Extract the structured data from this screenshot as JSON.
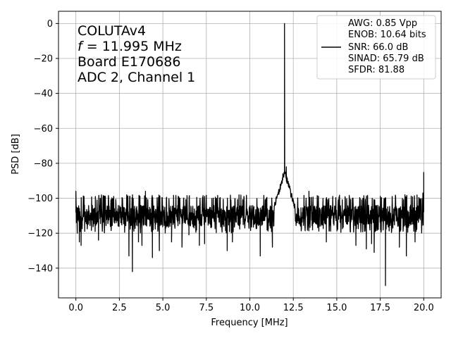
{
  "chart_data": {
    "type": "line",
    "xlabel": "Frequency [MHz]",
    "ylabel": "PSD [dB]",
    "xlim": [
      -1,
      21
    ],
    "ylim": [
      -157,
      7
    ],
    "xticks": [
      0.0,
      2.5,
      5.0,
      7.5,
      10.0,
      12.5,
      15.0,
      17.5,
      20.0
    ],
    "xtick_labels": [
      "0.0",
      "2.5",
      "5.0",
      "7.5",
      "10.0",
      "12.5",
      "15.0",
      "17.5",
      "20.0"
    ],
    "yticks": [
      0,
      -20,
      -40,
      -60,
      -80,
      -100,
      -120,
      -140
    ],
    "ytick_labels": [
      "0",
      "−20",
      "−40",
      "−60",
      "−80",
      "−100",
      "−120",
      "−140"
    ],
    "grid": true,
    "annotation": {
      "line1": "COLUTAv4",
      "line2_italic": "f",
      "line2_rest": " = 11.995 MHz",
      "line3": "Board E170686",
      "line4": "ADC 2, Channel 1"
    },
    "legend": {
      "placement": "top-right",
      "lines": [
        "AWG: 0.85 Vpp",
        "ENOB: 10.64 bits",
        "SNR: 66.0 dB",
        "SINAD: 65.79 dB",
        "SFDR: 81.88"
      ]
    },
    "series": [
      {
        "color": "#000000",
        "noise_floor_db": -110,
        "noise_band_db": [
          -120,
          -98
        ],
        "points": [
          {
            "x": 0.0,
            "y": -96
          },
          {
            "x": 0.03,
            "y": -105
          },
          {
            "x": 0.08,
            "y": -120
          },
          {
            "x": 0.2,
            "y": -125
          },
          {
            "x": 0.3,
            "y": -127
          },
          {
            "x": 1.3,
            "y": -124
          },
          {
            "x": 3.05,
            "y": -133
          },
          {
            "x": 3.25,
            "y": -142
          },
          {
            "x": 3.6,
            "y": -125
          },
          {
            "x": 3.8,
            "y": -127
          },
          {
            "x": 4.0,
            "y": -96
          },
          {
            "x": 4.4,
            "y": -134
          },
          {
            "x": 4.8,
            "y": -130
          },
          {
            "x": 5.5,
            "y": -125
          },
          {
            "x": 6.1,
            "y": -128
          },
          {
            "x": 6.5,
            "y": -121
          },
          {
            "x": 7.1,
            "y": -127
          },
          {
            "x": 7.4,
            "y": -126
          },
          {
            "x": 8.7,
            "y": -130
          },
          {
            "x": 9.0,
            "y": -125
          },
          {
            "x": 10.6,
            "y": -133
          },
          {
            "x": 11.3,
            "y": -128
          },
          {
            "x": 11.5,
            "y": -100
          },
          {
            "x": 11.75,
            "y": -92
          },
          {
            "x": 11.9,
            "y": -86
          },
          {
            "x": 11.995,
            "y": 0
          },
          {
            "x": 12.1,
            "y": -82
          },
          {
            "x": 12.3,
            "y": -93
          },
          {
            "x": 12.5,
            "y": -101
          },
          {
            "x": 13.4,
            "y": -96
          },
          {
            "x": 14.4,
            "y": -125
          },
          {
            "x": 15.9,
            "y": -100
          },
          {
            "x": 16.1,
            "y": -127
          },
          {
            "x": 16.7,
            "y": -129
          },
          {
            "x": 17.0,
            "y": -126
          },
          {
            "x": 17.15,
            "y": -131
          },
          {
            "x": 17.8,
            "y": -150
          },
          {
            "x": 18.6,
            "y": -128
          },
          {
            "x": 19.0,
            "y": -133
          },
          {
            "x": 19.5,
            "y": -125
          },
          {
            "x": 19.95,
            "y": -97
          },
          {
            "x": 20.0,
            "y": -85
          }
        ]
      }
    ]
  }
}
